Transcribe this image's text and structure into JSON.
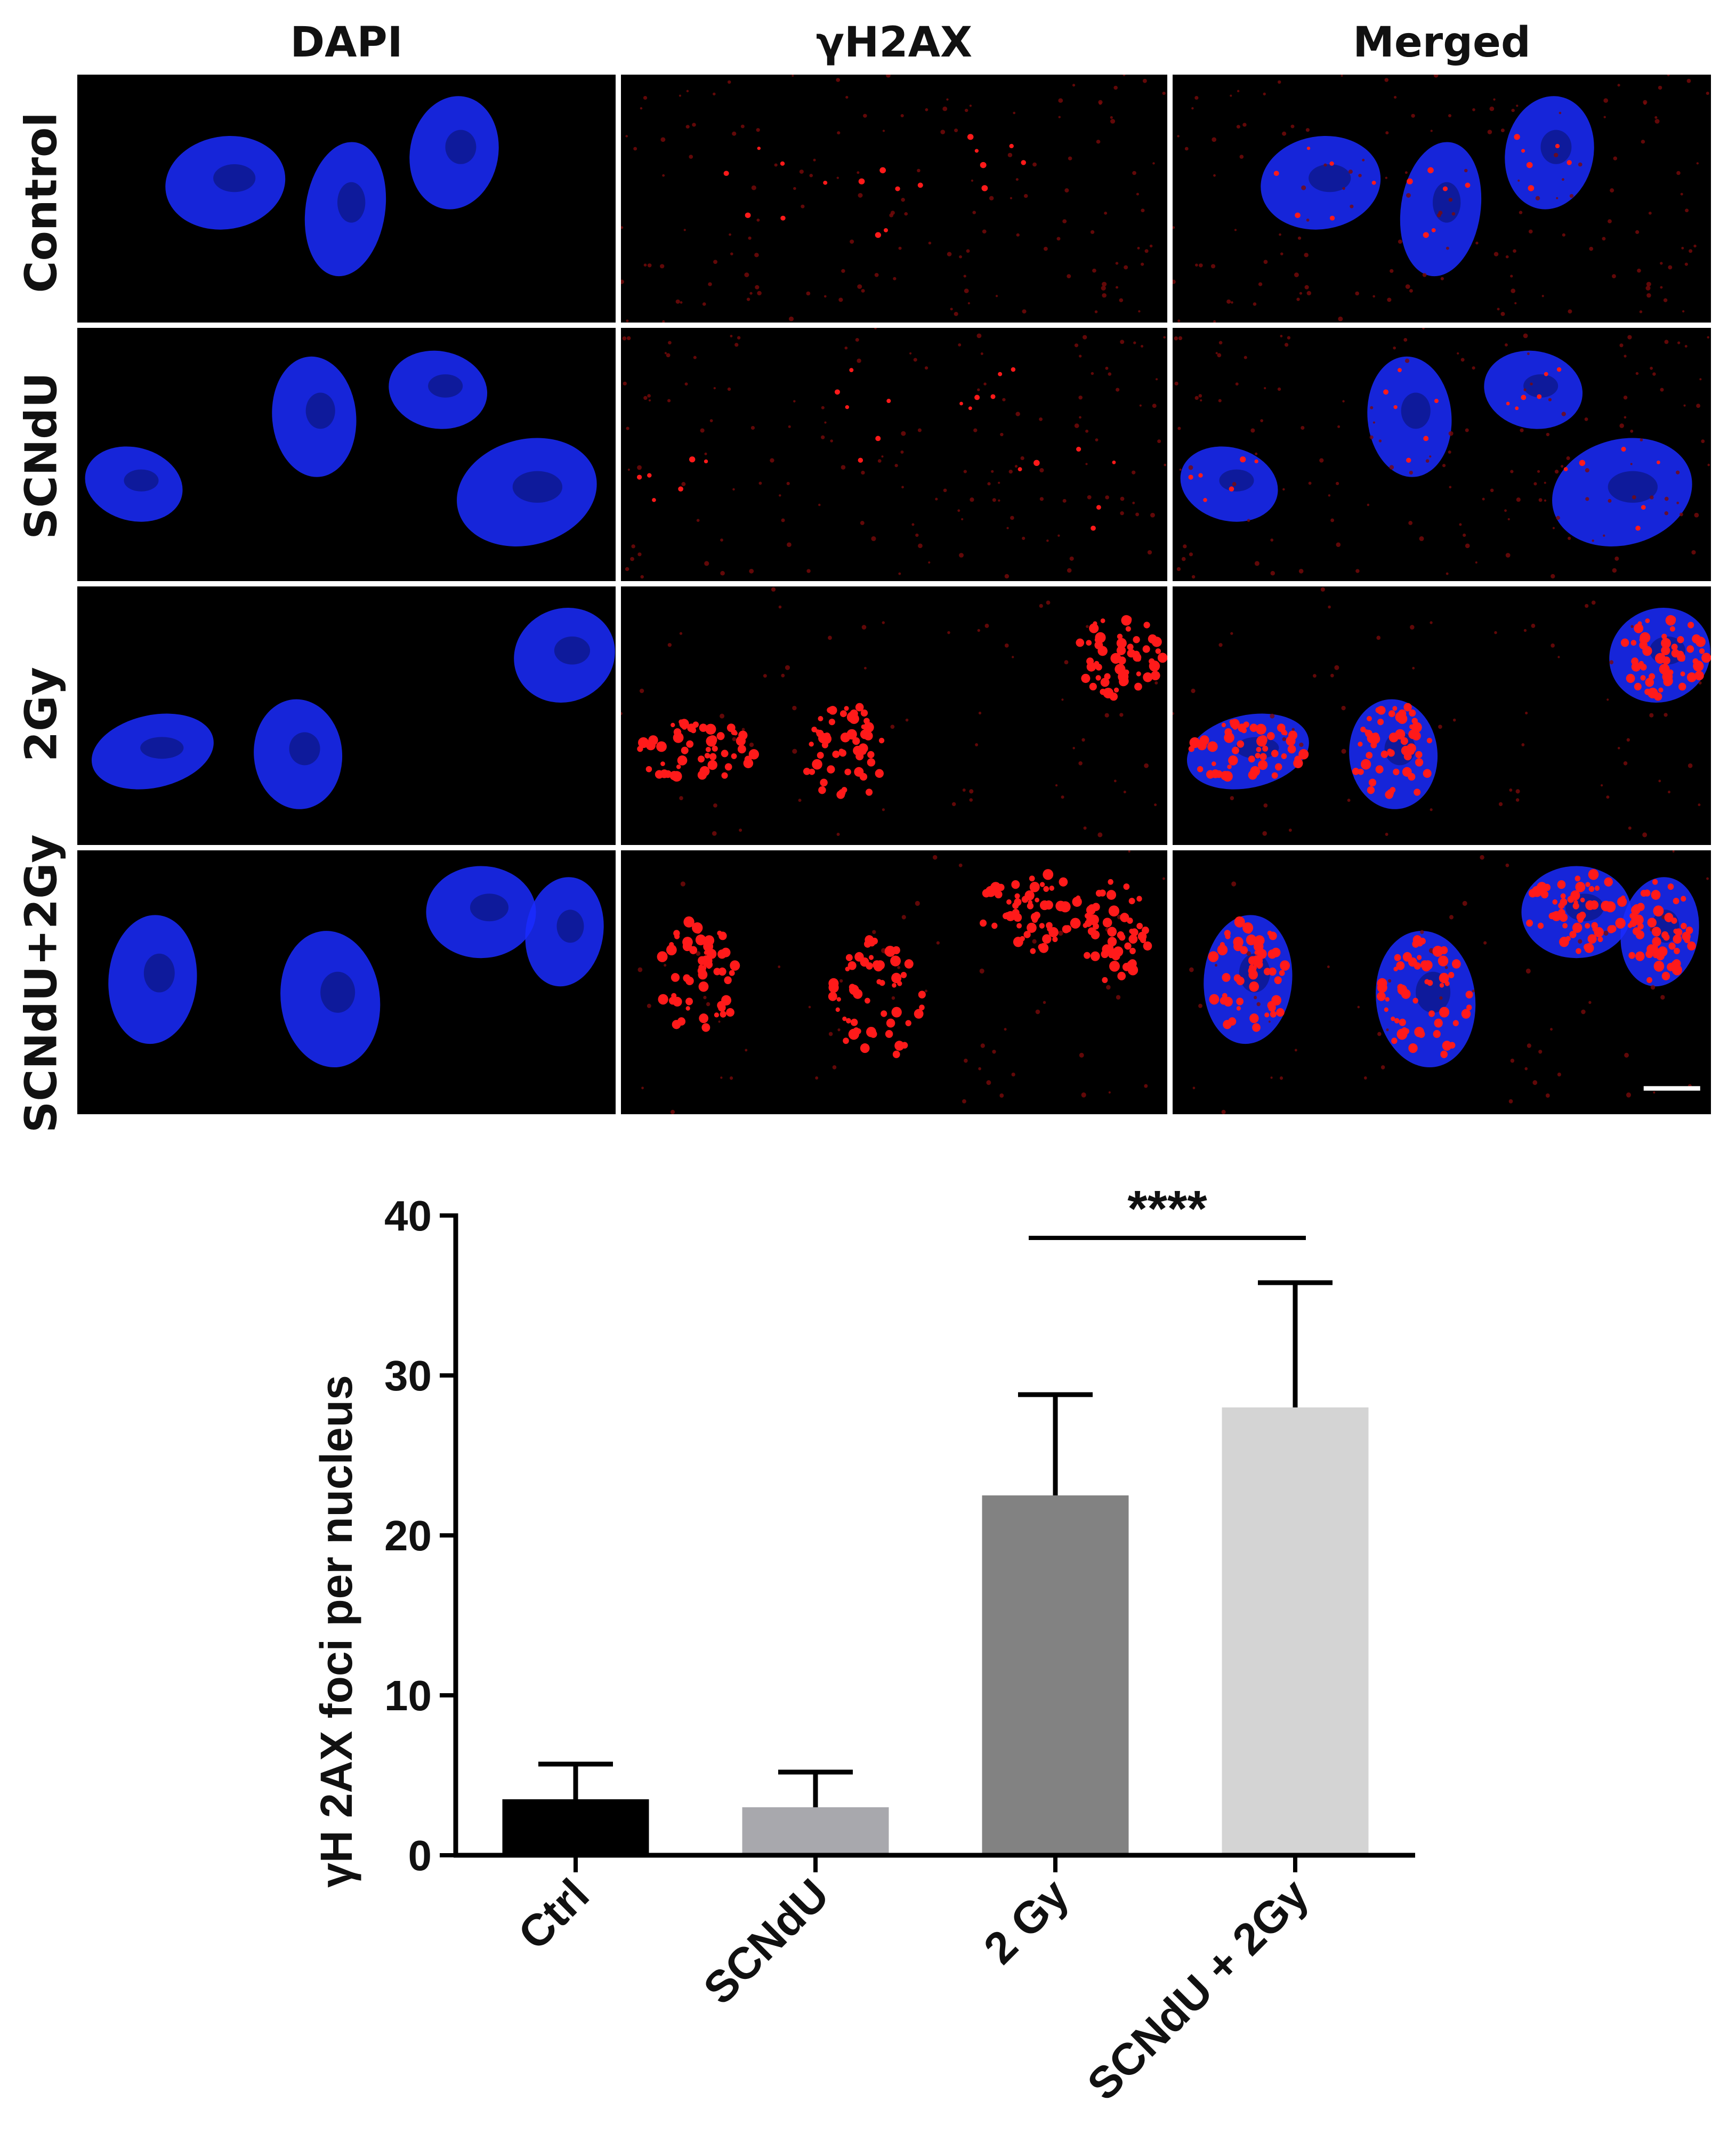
{
  "figure": {
    "columns": [
      "DAPI",
      "γH2AX",
      "Merged"
    ],
    "rows": [
      "Control",
      "SCNdU",
      "2Gy",
      "SCNdU+2Gy"
    ],
    "channel_colors": {
      "dapi": "#1a2cff",
      "gh2ax": "#ff1a1a"
    },
    "scale_bar": true
  },
  "chart_data": {
    "type": "bar",
    "categories": [
      "Ctrl",
      "SCNdU",
      "2 Gy",
      "SCNdU + 2Gy"
    ],
    "values": [
      3.5,
      3.0,
      22.5,
      28.0
    ],
    "errors": [
      2.2,
      2.2,
      6.3,
      7.8
    ],
    "colors": [
      "#000000",
      "#a8a8ad",
      "#828282",
      "#d4d4d4"
    ],
    "xlabel": "",
    "ylabel": "γH 2AX foci per nucleus",
    "ylim": [
      0,
      40
    ],
    "yticks": [
      0,
      10,
      20,
      30,
      40
    ],
    "significance": {
      "from": 2,
      "to": 3,
      "label": "****"
    },
    "grid": false
  }
}
